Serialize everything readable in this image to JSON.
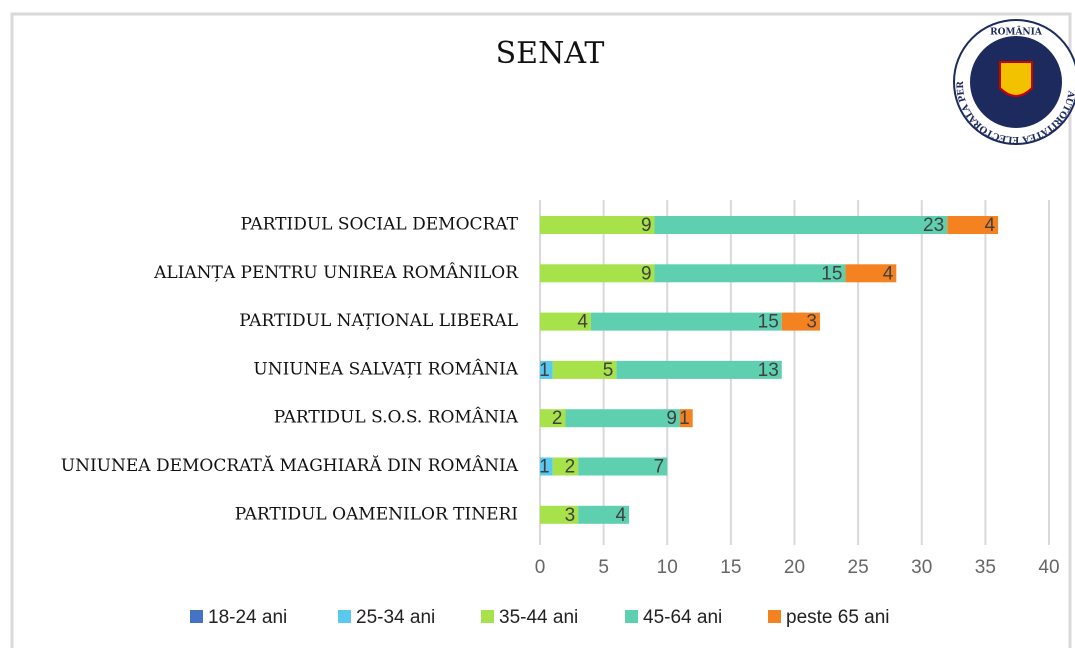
{
  "chart_data": {
    "type": "stacked-bar-horizontal",
    "title": "SENAT",
    "categories": [
      "PARTIDUL SOCIAL DEMOCRAT",
      "ALIANȚA PENTRU UNIREA ROMÂNILOR",
      "PARTIDUL NAȚIONAL LIBERAL",
      "UNIUNEA SALVAȚI ROMÂNIA",
      "PARTIDUL S.O.S. ROMÂNIA",
      "UNIUNEA DEMOCRATĂ MAGHIARĂ DIN ROMÂNIA",
      "PARTIDUL OAMENILOR TINERI"
    ],
    "series": [
      {
        "name": "18-24 ani",
        "color": "#4472c4",
        "values": [
          0,
          0,
          0,
          0,
          0,
          0,
          0
        ]
      },
      {
        "name": "25-34 ani",
        "color": "#5bc8f0",
        "values": [
          0,
          0,
          0,
          1,
          0,
          1,
          0
        ]
      },
      {
        "name": "35-44 ani",
        "color": "#a8e24a",
        "values": [
          9,
          9,
          4,
          5,
          2,
          2,
          3
        ]
      },
      {
        "name": "45-64 ani",
        "color": "#5ed0b0",
        "values": [
          23,
          15,
          15,
          13,
          9,
          7,
          4
        ]
      },
      {
        "name": "peste 65 ani",
        "color": "#f58220",
        "values": [
          4,
          4,
          3,
          0,
          1,
          0,
          0
        ]
      }
    ],
    "xlim": [
      0,
      40
    ],
    "xticks": [
      0,
      5,
      10,
      15,
      20,
      25,
      30,
      35,
      40
    ],
    "grid": true,
    "legend": "bottom"
  },
  "logo": {
    "top": "ROMÂNIA",
    "ring": "AUTORITATEA ELECTORALĂ PERMANENTĂ"
  }
}
